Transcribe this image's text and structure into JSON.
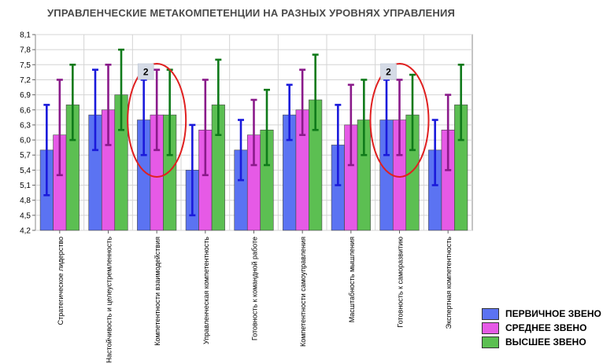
{
  "chart_data": {
    "type": "bar",
    "title": "УПРАВЛЕНЧЕСКИЕ МЕТАКОМПЕТЕНЦИИ НА РАЗНЫХ УРОВНЯХ УПРАВЛЕНИЯ",
    "xlabel": "",
    "ylabel": "",
    "ylim": [
      4.2,
      8.1
    ],
    "yticks": [
      "4,2",
      "4,5",
      "4,8",
      "5,1",
      "5,4",
      "5,7",
      "6,0",
      "6,3",
      "6,6",
      "6,9",
      "7,2",
      "7,5",
      "7,8",
      "8,1"
    ],
    "grid": true,
    "legend_position": "bottom-right",
    "categories": [
      "Стратегическое лидерство",
      "Настойчивость и целеустремленность",
      "Компетентности взаимодействия",
      "Управленческая компетентность",
      "Готовность к командной работе",
      "Компетентности самоуправления",
      "Масштабность мышления",
      "Готовность к саморазвитию",
      "Экспертная компетентность"
    ],
    "series": [
      {
        "name": "ПЕРВИЧНОЕ ЗВЕНО",
        "color": "#5b73f2",
        "error_color": "#1a1adb",
        "values": [
          5.8,
          6.5,
          6.4,
          5.4,
          5.8,
          6.5,
          5.9,
          6.4,
          5.8
        ],
        "err_low": [
          4.9,
          5.8,
          5.7,
          4.5,
          5.2,
          6.0,
          5.1,
          5.7,
          5.1
        ],
        "err_high": [
          6.7,
          7.4,
          7.2,
          6.3,
          6.4,
          7.1,
          6.7,
          7.2,
          6.4
        ]
      },
      {
        "name": "СРЕДНЕЕ ЗВЕНО",
        "color": "#e65ae6",
        "error_color": "#8a1a8a",
        "values": [
          6.1,
          6.6,
          6.5,
          6.2,
          6.1,
          6.6,
          6.3,
          6.4,
          6.2
        ],
        "err_low": [
          5.3,
          5.9,
          5.8,
          5.3,
          5.5,
          6.1,
          5.5,
          5.7,
          5.4
        ],
        "err_high": [
          7.2,
          7.5,
          7.4,
          7.2,
          6.8,
          7.4,
          7.1,
          7.2,
          6.9
        ]
      },
      {
        "name": "ВЫСШЕЕ ЗВЕНО",
        "color": "#5cbf52",
        "error_color": "#0f7a1a",
        "values": [
          6.7,
          6.9,
          6.5,
          6.7,
          6.2,
          6.8,
          6.4,
          6.5,
          6.7
        ],
        "err_low": [
          6.0,
          6.2,
          5.7,
          6.1,
          5.5,
          6.2,
          5.7,
          5.8,
          6.0
        ],
        "err_high": [
          7.5,
          7.8,
          7.4,
          7.6,
          7.0,
          7.7,
          7.2,
          7.3,
          7.5
        ]
      }
    ],
    "annotations": [
      {
        "category_index": 2,
        "label": "2",
        "highlight": "ellipse",
        "color": "#e02020"
      },
      {
        "category_index": 7,
        "label": "2",
        "highlight": "ellipse",
        "color": "#e02020"
      }
    ]
  }
}
